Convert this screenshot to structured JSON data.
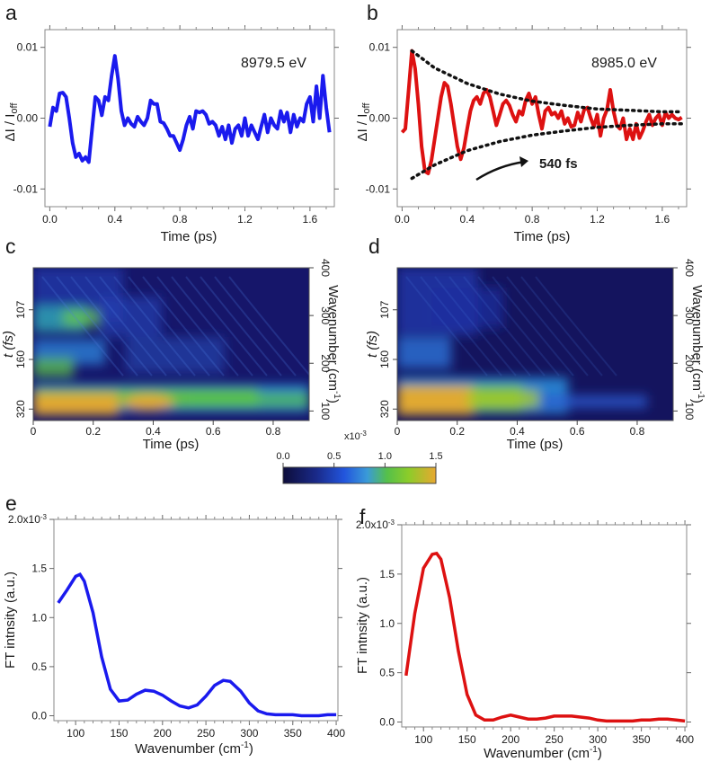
{
  "panels": {
    "a": {
      "letter": "a",
      "energy": "8979.5 eV",
      "xlabel": "Time (ps)",
      "ylabel_delta": "ΔI / I",
      "ylabel_sub": "off",
      "xticks": [
        "0.0",
        "0.4",
        "0.8",
        "1.2",
        "1.6"
      ],
      "yticks": [
        "0.01",
        "0.00",
        "-0.01"
      ]
    },
    "b": {
      "letter": "b",
      "energy": "8985.0 eV",
      "xlabel": "Time (ps)",
      "ylabel_delta": "ΔI / I",
      "ylabel_sub": "off",
      "xticks": [
        "0.0",
        "0.4",
        "0.8",
        "1.2",
        "1.6"
      ],
      "yticks": [
        "0.01",
        "0.00",
        "-0.01"
      ],
      "annotation": "540 fs"
    },
    "c": {
      "letter": "c",
      "xlabel": "Time (ps)",
      "ylabel_left": "t (fs)",
      "ylabel_right": "Wavenumber (cm",
      "ylabel_right_sup": "-1",
      "ylabel_right_close": ")",
      "xticks": [
        "0",
        "0.2",
        "0.4",
        "0.6",
        "0.8"
      ],
      "left_ticks": [
        "107",
        "160",
        "320"
      ],
      "right_ticks": [
        "400",
        "300",
        "200",
        "100"
      ]
    },
    "d": {
      "letter": "d",
      "xlabel": "Time (ps)",
      "ylabel_left": "t (fs)",
      "ylabel_right": "Wavenumber (cm",
      "ylabel_right_sup": "-1",
      "ylabel_right_close": ")",
      "xticks": [
        "0",
        "0.2",
        "0.4",
        "0.6",
        "0.8"
      ],
      "left_ticks": [
        "107",
        "160",
        "320"
      ],
      "right_ticks": [
        "400",
        "300",
        "200",
        "100"
      ]
    },
    "e": {
      "letter": "e",
      "xlabel": "Wavenumber (cm",
      "xlabel_sup": "-1",
      "xlabel_close": ")",
      "ylabel": "FT intnsity (a.u.)",
      "xticks": [
        "100",
        "150",
        "200",
        "250",
        "300",
        "350",
        "400"
      ],
      "yticks": [
        "0.0",
        "0.5",
        "1.0",
        "1.5",
        "2.0x10"
      ],
      "ytop_exp": "-3"
    },
    "f": {
      "letter": "f",
      "xlabel": "Wavenumber (cm",
      "xlabel_sup": "-1",
      "xlabel_close": ")",
      "ylabel": "FT intnsity (a.u.)",
      "xticks": [
        "100",
        "150",
        "200",
        "250",
        "300",
        "350",
        "400"
      ],
      "yticks": [
        "0.0",
        "0.5",
        "1.0",
        "1.5",
        "2.0x10"
      ],
      "ytop_exp": "-3"
    }
  },
  "colorbar": {
    "ticks": [
      "0.0",
      "0.5",
      "1.0",
      "1.5"
    ],
    "exp_base": "x10",
    "exp_sup": "-3"
  },
  "colors": {
    "blue": "#1a1aee",
    "red": "#dd1111",
    "colormap": [
      "#0d0d3a",
      "#1a2a8a",
      "#2255dd",
      "#3a9ad8",
      "#55c04a",
      "#8ccc2a",
      "#e8a830"
    ]
  },
  "chart_data": [
    {
      "type": "line",
      "panel": "a",
      "title": "8979.5 eV",
      "xlabel": "Time (ps)",
      "ylabel": "ΔI / Ioff",
      "xlim": [
        -0.03,
        1.75
      ],
      "ylim": [
        -0.0125,
        0.0125
      ],
      "series": [
        {
          "color": "#1a1aee",
          "x": [
            0.0,
            0.02,
            0.04,
            0.06,
            0.08,
            0.1,
            0.12,
            0.14,
            0.16,
            0.18,
            0.2,
            0.22,
            0.24,
            0.26,
            0.28,
            0.3,
            0.32,
            0.34,
            0.36,
            0.38,
            0.4,
            0.42,
            0.44,
            0.46,
            0.48,
            0.5,
            0.52,
            0.54,
            0.56,
            0.58,
            0.6,
            0.62,
            0.64,
            0.66,
            0.68,
            0.7,
            0.72,
            0.74,
            0.76,
            0.78,
            0.8,
            0.82,
            0.84,
            0.86,
            0.88,
            0.9,
            0.92,
            0.94,
            0.96,
            0.98,
            1.0,
            1.02,
            1.04,
            1.06,
            1.08,
            1.1,
            1.12,
            1.14,
            1.16,
            1.18,
            1.2,
            1.22,
            1.24,
            1.26,
            1.28,
            1.3,
            1.32,
            1.34,
            1.36,
            1.38,
            1.4,
            1.42,
            1.44,
            1.46,
            1.48,
            1.5,
            1.52,
            1.54,
            1.56,
            1.58,
            1.6,
            1.62,
            1.64,
            1.66,
            1.68,
            1.7,
            1.72
          ],
          "y": [
            -0.0012,
            0.0015,
            0.001,
            0.0035,
            0.0036,
            0.003,
            0.0,
            -0.0035,
            -0.0055,
            -0.005,
            -0.006,
            -0.0055,
            -0.0062,
            -0.0015,
            0.003,
            0.0025,
            0.0004,
            0.003,
            0.0025,
            0.006,
            0.0088,
            0.0055,
            0.001,
            -0.001,
            0.0,
            -0.0008,
            -0.0012,
            0.0002,
            -0.0005,
            -0.001,
            0.0,
            0.0025,
            0.002,
            0.002,
            -0.0005,
            -0.0007,
            -0.0015,
            -0.0025,
            -0.0025,
            -0.0035,
            -0.0045,
            -0.003,
            -0.001,
            0.0002,
            -0.0015,
            0.001,
            0.0008,
            0.001,
            0.0005,
            -0.0008,
            -0.0005,
            -0.001,
            -0.0025,
            -0.0012,
            -0.003,
            -0.001,
            -0.0035,
            -0.0015,
            -0.001,
            -0.0025,
            0.0,
            -0.0025,
            -0.001,
            -0.002,
            -0.003,
            -0.0012,
            0.0005,
            -0.002,
            0.0,
            -0.001,
            -0.0015,
            0.001,
            -0.0005,
            0.0008,
            -0.002,
            0.0005,
            -0.0012,
            0.0,
            -0.0005,
            0.002,
            0.003,
            -0.0005,
            0.0045,
            0.0,
            0.006,
            0.0015,
            -0.002
          ]
        }
      ]
    },
    {
      "type": "line",
      "panel": "b",
      "title": "8985.0 eV",
      "xlabel": "Time (ps)",
      "ylabel": "ΔI / Ioff",
      "xlim": [
        -0.03,
        1.75
      ],
      "ylim": [
        -0.0125,
        0.0125
      ],
      "annotation": "540 fs",
      "series": [
        {
          "color": "#dd1111",
          "x": [
            0.0,
            0.02,
            0.04,
            0.06,
            0.08,
            0.1,
            0.12,
            0.14,
            0.16,
            0.18,
            0.2,
            0.22,
            0.24,
            0.26,
            0.28,
            0.3,
            0.32,
            0.34,
            0.36,
            0.38,
            0.4,
            0.42,
            0.44,
            0.46,
            0.48,
            0.5,
            0.52,
            0.54,
            0.56,
            0.58,
            0.6,
            0.62,
            0.64,
            0.66,
            0.68,
            0.7,
            0.72,
            0.74,
            0.76,
            0.78,
            0.8,
            0.82,
            0.84,
            0.86,
            0.88,
            0.9,
            0.92,
            0.94,
            0.96,
            0.98,
            1.0,
            1.02,
            1.04,
            1.06,
            1.08,
            1.1,
            1.12,
            1.14,
            1.16,
            1.18,
            1.2,
            1.22,
            1.24,
            1.26,
            1.28,
            1.3,
            1.32,
            1.34,
            1.36,
            1.38,
            1.4,
            1.42,
            1.44,
            1.46,
            1.48,
            1.5,
            1.52,
            1.54,
            1.56,
            1.58,
            1.6,
            1.62,
            1.64,
            1.66,
            1.68,
            1.7,
            1.72
          ],
          "y": [
            -0.002,
            -0.0015,
            0.004,
            0.0095,
            0.007,
            0.002,
            -0.004,
            -0.0075,
            -0.0078,
            -0.006,
            -0.003,
            0.0,
            0.003,
            0.005,
            0.0045,
            0.002,
            -0.001,
            -0.004,
            -0.0058,
            -0.0042,
            -0.0015,
            0.001,
            0.0025,
            0.003,
            0.002,
            0.0035,
            0.004,
            0.003,
            0.001,
            -0.001,
            0.0005,
            0.002,
            0.0025,
            0.0018,
            0.0005,
            -0.0005,
            0.001,
            0.0005,
            0.0025,
            0.0035,
            0.002,
            0.003,
            0.0005,
            -0.0015,
            0.001,
            0.0015,
            0.0005,
            0.0008,
            0.0,
            0.001,
            -0.0008,
            0.0,
            -0.0012,
            -0.001,
            0.0008,
            -0.0005,
            0.0012,
            0.0015,
            0.0,
            -0.0012,
            0.0005,
            -0.0025,
            0.0,
            0.0012,
            0.004,
            0.001,
            -0.001,
            -0.0015,
            0.0,
            -0.003,
            -0.0015,
            -0.003,
            -0.0008,
            -0.0028,
            -0.0018,
            -0.0005,
            0.0005,
            -0.001,
            0.0,
            0.0005,
            -0.001,
            0.0008,
            0.0,
            0.0005,
            0.0,
            -0.0002,
            0.0001
          ]
        },
        {
          "name": "upper envelope",
          "style": "dotted",
          "color": "#111111",
          "x": [
            0.06,
            0.2,
            0.4,
            0.6,
            0.8,
            1.0,
            1.2,
            1.4,
            1.6,
            1.72
          ],
          "y": [
            0.0095,
            0.0071,
            0.0049,
            0.0034,
            0.0024,
            0.0018,
            0.0013,
            0.0011,
            0.0009,
            0.0009
          ]
        },
        {
          "name": "lower envelope",
          "style": "dotted",
          "color": "#111111",
          "x": [
            0.06,
            0.2,
            0.4,
            0.6,
            0.8,
            1.0,
            1.2,
            1.4,
            1.6,
            1.72
          ],
          "y": [
            -0.0085,
            -0.0066,
            -0.0046,
            -0.0033,
            -0.0024,
            -0.0018,
            -0.0013,
            -0.001,
            -0.0008,
            -0.0008
          ]
        }
      ]
    },
    {
      "type": "heatmap",
      "panel": "c",
      "xlabel": "Time (ps)",
      "ylabel": "t (fs)",
      "ylabel_right": "Wavenumber (cm-1)",
      "xlim": [
        0,
        0.92
      ],
      "ylim": [
        80,
        400
      ],
      "colorbar_range": [
        0,
        0.0015
      ],
      "features": [
        {
          "x": 0.08,
          "y": 100,
          "value": 0.0015
        },
        {
          "x": 0.35,
          "y": 100,
          "value": 0.0015
        },
        {
          "x": 0.6,
          "y": 100,
          "value": 0.0009
        },
        {
          "x": 0.1,
          "y": 180,
          "value": 0.0009
        },
        {
          "x": 0.1,
          "y": 270,
          "value": 0.0009
        }
      ]
    },
    {
      "type": "heatmap",
      "panel": "d",
      "xlabel": "Time (ps)",
      "ylabel": "t (fs)",
      "ylabel_right": "Wavenumber (cm-1)",
      "xlim": [
        0,
        0.92
      ],
      "ylim": [
        80,
        400
      ],
      "colorbar_range": [
        0,
        0.0015
      ],
      "features": [
        {
          "x": 0.1,
          "y": 100,
          "value": 0.0015
        },
        {
          "x": 0.4,
          "y": 100,
          "value": 0.001
        },
        {
          "x": 0.6,
          "y": 100,
          "value": 0.0006
        }
      ]
    },
    {
      "type": "line",
      "panel": "e",
      "xlabel": "Wavenumber (cm-1)",
      "ylabel": "FT intnsity (a.u.)",
      "xlim": [
        75,
        402
      ],
      "ylim": [
        -5e-05,
        0.002
      ],
      "series": [
        {
          "color": "#1a1aee",
          "x": [
            80,
            90,
            100,
            105,
            110,
            120,
            130,
            140,
            150,
            160,
            170,
            180,
            190,
            200,
            210,
            220,
            230,
            240,
            250,
            260,
            270,
            278,
            290,
            300,
            310,
            320,
            330,
            340,
            350,
            360,
            370,
            380,
            390,
            400
          ],
          "y": [
            0.00115,
            0.00128,
            0.00142,
            0.00144,
            0.00137,
            0.00105,
            0.0006,
            0.00027,
            0.00015,
            0.00016,
            0.00022,
            0.00026,
            0.00025,
            0.00021,
            0.00015,
            0.0001,
            8e-05,
            0.00011,
            0.0002,
            0.00031,
            0.00036,
            0.00035,
            0.00025,
            0.00013,
            5e-05,
            2e-05,
            1e-05,
            1e-05,
            1e-05,
            0.0,
            0.0,
            0.0,
            1e-05,
            1e-05
          ]
        }
      ]
    },
    {
      "type": "line",
      "panel": "f",
      "xlabel": "Wavenumber (cm-1)",
      "ylabel": "FT intnsity (a.u.)",
      "xlim": [
        75,
        402
      ],
      "ylim": [
        -5e-05,
        0.002
      ],
      "series": [
        {
          "color": "#dd1111",
          "x": [
            80,
            90,
            100,
            110,
            115,
            120,
            130,
            140,
            150,
            160,
            170,
            180,
            190,
            200,
            210,
            220,
            230,
            240,
            250,
            260,
            270,
            280,
            290,
            300,
            310,
            320,
            330,
            340,
            350,
            360,
            370,
            380,
            390,
            400
          ],
          "y": [
            0.00047,
            0.0011,
            0.00156,
            0.0017,
            0.00171,
            0.00165,
            0.00126,
            0.00072,
            0.00028,
            7e-05,
            2e-05,
            2e-05,
            5e-05,
            7e-05,
            5e-05,
            3e-05,
            3e-05,
            4e-05,
            6e-05,
            6e-05,
            6e-05,
            5e-05,
            4e-05,
            2e-05,
            1e-05,
            1e-05,
            1e-05,
            1e-05,
            2e-05,
            2e-05,
            3e-05,
            3e-05,
            2e-05,
            1e-05
          ]
        }
      ]
    }
  ]
}
